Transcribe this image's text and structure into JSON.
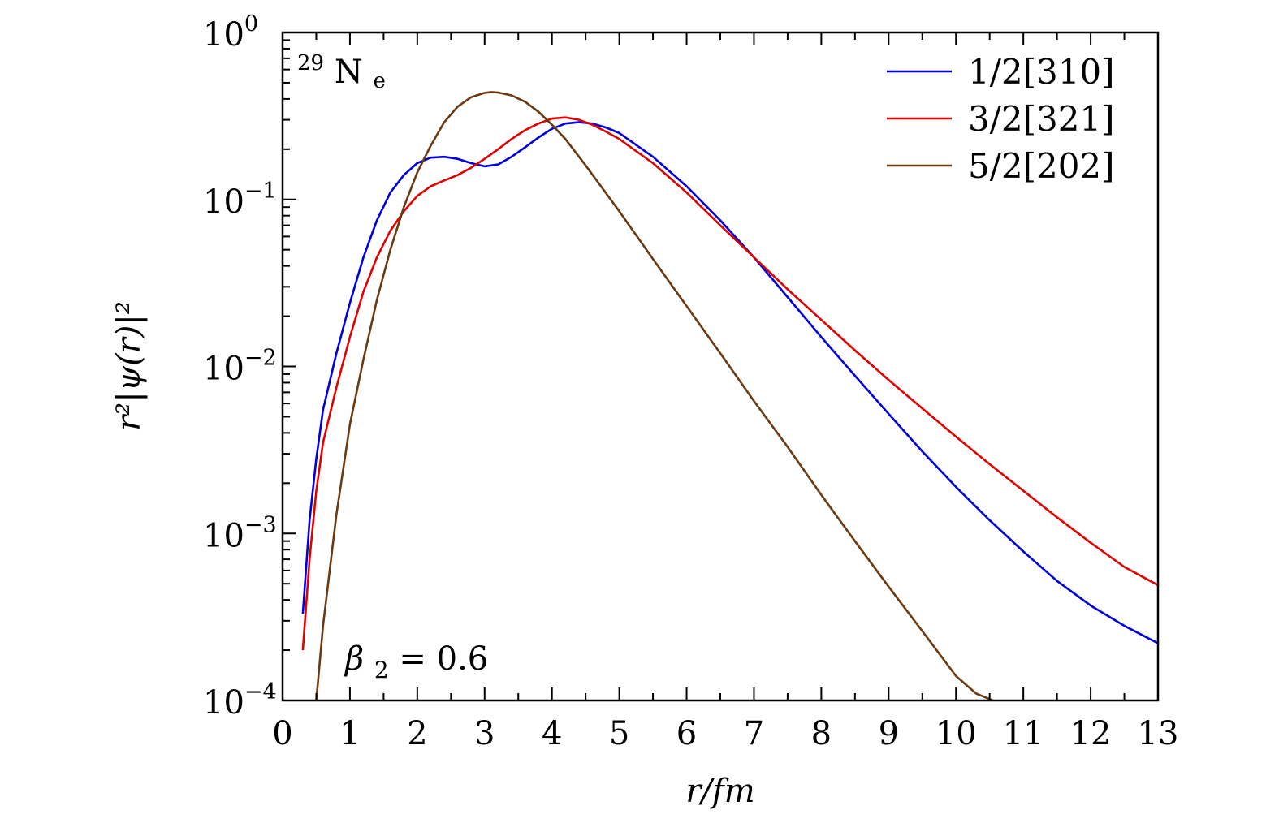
{
  "chart_data": {
    "type": "line",
    "xlabel": "r/fm",
    "ylabel": "r²|ψ(r)|²",
    "xlim": [
      0,
      13
    ],
    "ylim": [
      0.0001,
      1
    ],
    "yscale": "log",
    "x_ticks": [
      0,
      1,
      2,
      3,
      4,
      5,
      6,
      7,
      8,
      9,
      10,
      11,
      12,
      13
    ],
    "y_ticks": [
      {
        "value": 0.0001,
        "base": "10",
        "exp": "−4"
      },
      {
        "value": 0.001,
        "base": "10",
        "exp": "−3"
      },
      {
        "value": 0.01,
        "base": "10",
        "exp": "−2"
      },
      {
        "value": 0.1,
        "base": "10",
        "exp": "−1"
      },
      {
        "value": 1,
        "base": "10",
        "exp": "0"
      }
    ],
    "legend_position": "top-right",
    "grid": false,
    "annotations": {
      "nucleus": {
        "sup": "29",
        "main": "N",
        "sub": "e"
      },
      "deformation": {
        "symbol": "β",
        "sub": "2",
        "rest": " = 0.6"
      }
    },
    "series": [
      {
        "name": "1/2[310]",
        "color": "#0000dd",
        "x": [
          0.3,
          0.4,
          0.5,
          0.6,
          0.8,
          1.0,
          1.2,
          1.4,
          1.6,
          1.8,
          2.0,
          2.2,
          2.4,
          2.6,
          2.8,
          3.0,
          3.2,
          3.4,
          3.6,
          3.8,
          4.0,
          4.2,
          4.4,
          4.6,
          4.8,
          5.0,
          5.5,
          6.0,
          6.5,
          7.0,
          7.5,
          8.0,
          8.5,
          9.0,
          9.5,
          10.0,
          10.5,
          11.0,
          11.5,
          12.0,
          12.5,
          13.0
        ],
        "y": [
          0.00033,
          0.0012,
          0.0028,
          0.0055,
          0.012,
          0.024,
          0.045,
          0.075,
          0.11,
          0.14,
          0.165,
          0.178,
          0.18,
          0.175,
          0.165,
          0.158,
          0.162,
          0.18,
          0.205,
          0.235,
          0.265,
          0.285,
          0.29,
          0.285,
          0.27,
          0.25,
          0.18,
          0.12,
          0.075,
          0.045,
          0.026,
          0.015,
          0.0088,
          0.0052,
          0.0031,
          0.0019,
          0.0012,
          0.00078,
          0.00052,
          0.00037,
          0.00028,
          0.00022
        ]
      },
      {
        "name": "3/2[321]",
        "color": "#e00000",
        "x": [
          0.3,
          0.4,
          0.5,
          0.6,
          0.8,
          1.0,
          1.2,
          1.4,
          1.6,
          1.8,
          2.0,
          2.2,
          2.4,
          2.6,
          2.8,
          3.0,
          3.2,
          3.4,
          3.6,
          3.8,
          4.0,
          4.2,
          4.4,
          4.6,
          4.8,
          5.0,
          5.5,
          6.0,
          6.5,
          7.0,
          7.5,
          8.0,
          8.5,
          9.0,
          9.5,
          10.0,
          10.5,
          11.0,
          11.5,
          12.0,
          12.5,
          13.0
        ],
        "y": [
          0.0002,
          0.0007,
          0.0018,
          0.0035,
          0.0075,
          0.015,
          0.028,
          0.045,
          0.065,
          0.085,
          0.105,
          0.12,
          0.13,
          0.14,
          0.155,
          0.175,
          0.2,
          0.23,
          0.26,
          0.285,
          0.305,
          0.31,
          0.3,
          0.28,
          0.255,
          0.23,
          0.165,
          0.11,
          0.07,
          0.045,
          0.029,
          0.019,
          0.0125,
          0.0083,
          0.0056,
          0.0038,
          0.0026,
          0.0018,
          0.00125,
          0.00088,
          0.00063,
          0.00049
        ]
      },
      {
        "name": "5/2[202]",
        "color": "#6b3a12",
        "x": [
          0.5,
          0.6,
          0.8,
          1.0,
          1.2,
          1.4,
          1.6,
          1.8,
          2.0,
          2.2,
          2.4,
          2.6,
          2.8,
          3.0,
          3.1,
          3.2,
          3.4,
          3.6,
          3.8,
          4.0,
          4.2,
          4.5,
          5.0,
          5.5,
          6.0,
          6.5,
          7.0,
          7.5,
          8.0,
          8.5,
          9.0,
          9.5,
          10.0,
          10.3,
          10.55
        ],
        "y": [
          0.0001,
          0.00028,
          0.0013,
          0.0045,
          0.011,
          0.025,
          0.05,
          0.09,
          0.145,
          0.21,
          0.29,
          0.36,
          0.41,
          0.435,
          0.44,
          0.437,
          0.42,
          0.385,
          0.335,
          0.28,
          0.23,
          0.16,
          0.085,
          0.044,
          0.023,
          0.012,
          0.0062,
          0.0033,
          0.0017,
          0.0009,
          0.00048,
          0.00026,
          0.00014,
          0.00011,
          0.0001
        ]
      }
    ]
  }
}
